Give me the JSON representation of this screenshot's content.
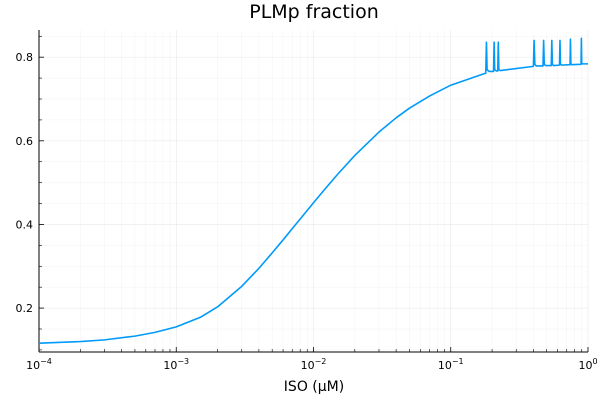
{
  "chart_data": {
    "type": "line",
    "title": "PLMp fraction",
    "xlabel": "ISO (μM)",
    "ylabel": "",
    "xscale": "log",
    "xlim": [
      0.0001,
      1
    ],
    "ylim": [
      0.095,
      0.865
    ],
    "grid": true,
    "legend": "none",
    "x_ticks": [
      {
        "value": 0.0001,
        "base": "10",
        "exp": "−4"
      },
      {
        "value": 0.001,
        "base": "10",
        "exp": "−3"
      },
      {
        "value": 0.01,
        "base": "10",
        "exp": "−2"
      },
      {
        "value": 0.1,
        "base": "10",
        "exp": "−1"
      },
      {
        "value": 1,
        "base": "10",
        "exp": "0"
      }
    ],
    "y_ticks": [
      {
        "value": 0.2,
        "label": "0.2"
      },
      {
        "value": 0.4,
        "label": "0.4"
      },
      {
        "value": 0.6,
        "label": "0.6"
      },
      {
        "value": 0.8,
        "label": "0.8"
      }
    ],
    "series": [
      {
        "color": "#009af9",
        "x": [
          0.0001,
          0.0002,
          0.0003,
          0.0005,
          0.0007,
          0.001,
          0.0015,
          0.002,
          0.003,
          0.004,
          0.005,
          0.006,
          0.007,
          0.008,
          0.01,
          0.012,
          0.015,
          0.02,
          0.03,
          0.04,
          0.05,
          0.07,
          0.1,
          0.15,
          0.18,
          0.182,
          0.184,
          0.19,
          0.205,
          0.207,
          0.209,
          0.215,
          0.22,
          0.222,
          0.224,
          0.23,
          0.4,
          0.405,
          0.41,
          0.42,
          0.47,
          0.475,
          0.48,
          0.49,
          0.54,
          0.545,
          0.55,
          0.56,
          0.62,
          0.625,
          0.63,
          0.64,
          0.74,
          0.745,
          0.75,
          0.76,
          0.89,
          0.895,
          0.9,
          0.91,
          0.95,
          1
        ],
        "y": [
          0.116,
          0.12,
          0.124,
          0.133,
          0.142,
          0.155,
          0.178,
          0.203,
          0.252,
          0.295,
          0.332,
          0.363,
          0.39,
          0.413,
          0.452,
          0.483,
          0.52,
          0.565,
          0.621,
          0.655,
          0.678,
          0.707,
          0.733,
          0.753,
          0.762,
          0.836,
          0.77,
          0.766,
          0.766,
          0.836,
          0.77,
          0.767,
          0.767,
          0.836,
          0.77,
          0.768,
          0.778,
          0.84,
          0.783,
          0.779,
          0.779,
          0.84,
          0.783,
          0.78,
          0.78,
          0.84,
          0.783,
          0.78,
          0.781,
          0.84,
          0.784,
          0.781,
          0.782,
          0.843,
          0.785,
          0.782,
          0.783,
          0.845,
          0.786,
          0.784,
          0.784,
          0.784
        ]
      }
    ]
  }
}
